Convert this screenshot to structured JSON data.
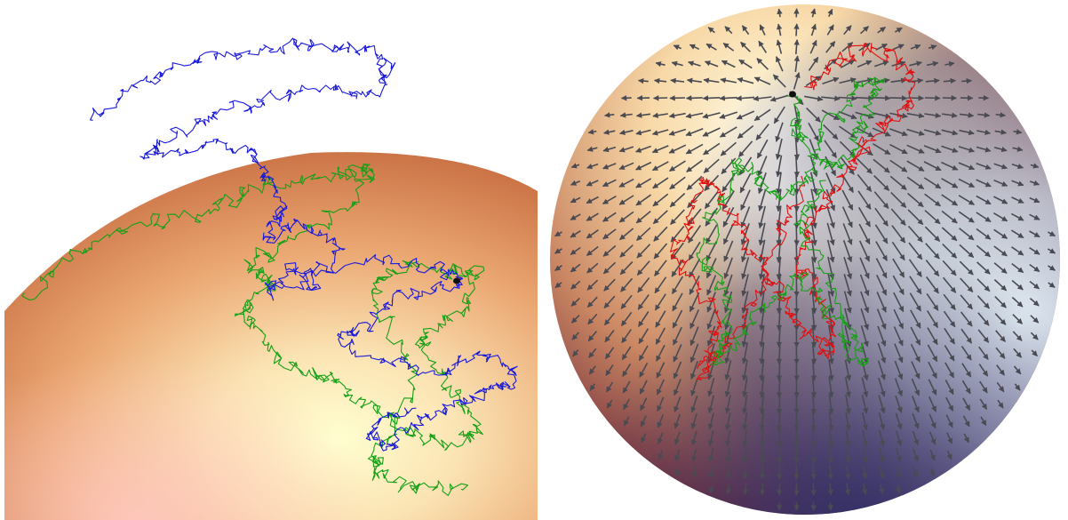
{
  "figure": {
    "panels": [
      {
        "name": "left-panel",
        "content": "brownian-paths-near-sphere-surface",
        "paths": [
          {
            "color": "#1a1adb",
            "role": "path-above-surface"
          },
          {
            "color": "#16a016",
            "role": "path-on-surface"
          }
        ],
        "start_marker_color": "#111111",
        "surface_colors": [
          "#c4683a",
          "#f6ddb0",
          "#ffffcc",
          "#f9c6b8"
        ]
      },
      {
        "name": "right-panel",
        "content": "sphere-with-tangent-vector-field-and-paths",
        "paths": [
          {
            "color": "#e01010",
            "role": "path-red"
          },
          {
            "color": "#16a016",
            "role": "path-green"
          }
        ],
        "arrow_color": "#4a4a52",
        "start_marker_color": "#111111",
        "surface_colors": [
          "#e8a06a",
          "#fffbe0",
          "#d8ecf5",
          "#3d3f7a",
          "#6a2a3e"
        ]
      }
    ]
  }
}
